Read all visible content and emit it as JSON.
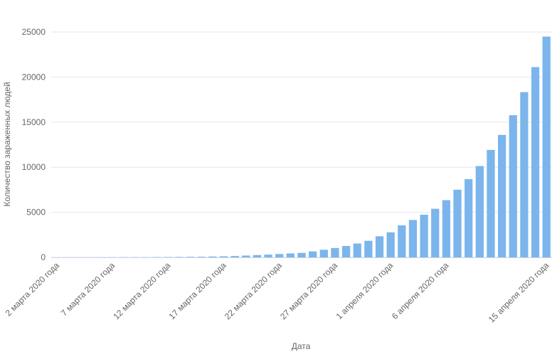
{
  "chart_data": {
    "type": "bar",
    "x_label": "Дата",
    "y_label": "Количество зараженных людей",
    "categories": [
      "2 марта 2020 года",
      null,
      null,
      null,
      null,
      "7 марта 2020 года",
      null,
      null,
      null,
      null,
      "12 марта 2020 года",
      null,
      null,
      null,
      null,
      "17 марта 2020 года",
      null,
      null,
      null,
      null,
      "22 марта 2020 года",
      null,
      null,
      null,
      null,
      "27 марта 2020 года",
      null,
      null,
      null,
      null,
      "1 апреля 2020 года",
      null,
      null,
      null,
      null,
      "6 апреля 2020 года",
      null,
      null,
      null,
      null,
      null,
      null,
      null,
      null,
      "15 апреля 2020 года"
    ],
    "values": [
      3,
      3,
      3,
      4,
      10,
      14,
      17,
      17,
      20,
      28,
      34,
      45,
      59,
      63,
      93,
      114,
      147,
      199,
      253,
      306,
      367,
      438,
      495,
      658,
      840,
      1036,
      1264,
      1534,
      1836,
      2337,
      2777,
      3548,
      4149,
      4731,
      5389,
      6343,
      7497,
      8672,
      10131,
      11917,
      13584,
      15770,
      18328,
      21102,
      24490
    ],
    "color": "#7cb5ec",
    "ylim": [
      0,
      25000
    ],
    "yticks": [
      0,
      5000,
      10000,
      15000,
      20000,
      25000
    ],
    "grid": true
  }
}
